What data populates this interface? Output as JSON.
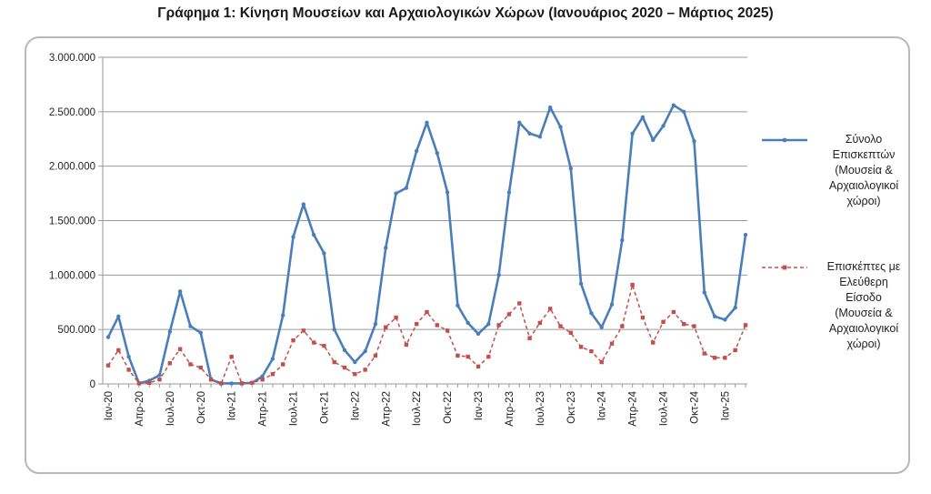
{
  "title": "Γράφημα 1: Κίνηση Μουσείων και Αρχαιολογικών Χώρων (Ιανουάριος 2020 – Μάρτιος 2025)",
  "chart_data": {
    "type": "line",
    "title": "Γράφημα 1: Κίνηση Μουσείων και Αρχαιολογικών Χώρων (Ιανουάριος 2020 – Μάρτιος 2025)",
    "xlabel": "",
    "ylabel": "",
    "ylim": [
      0,
      3000000
    ],
    "yticks": [
      "0",
      "500.000",
      "1.000.000",
      "1.500.000",
      "2.000.000",
      "2.500.000",
      "3.000.000"
    ],
    "ytick_values": [
      0,
      500000,
      1000000,
      1500000,
      2000000,
      2500000,
      3000000
    ],
    "grid": true,
    "legend_position": "right",
    "x": [
      "Ιαν-20",
      "Φεβ-20",
      "Μαρ-20",
      "Απρ-20",
      "Μαϊ-20",
      "Ιουν-20",
      "Ιουλ-20",
      "Αυγ-20",
      "Σεπ-20",
      "Οκτ-20",
      "Νοε-20",
      "Δεκ-20",
      "Ιαν-21",
      "Φεβ-21",
      "Μαρ-21",
      "Απρ-21",
      "Μαϊ-21",
      "Ιουν-21",
      "Ιουλ-21",
      "Αυγ-21",
      "Σεπ-21",
      "Οκτ-21",
      "Νοε-21",
      "Δεκ-21",
      "Ιαν-22",
      "Φεβ-22",
      "Μαρ-22",
      "Απρ-22",
      "Μαϊ-22",
      "Ιουν-22",
      "Ιουλ-22",
      "Αυγ-22",
      "Σεπ-22",
      "Οκτ-22",
      "Νοε-22",
      "Δεκ-22",
      "Ιαν-23",
      "Φεβ-23",
      "Μαρ-23",
      "Απρ-23",
      "Μαϊ-23",
      "Ιουν-23",
      "Ιουλ-23",
      "Αυγ-23",
      "Σεπ-23",
      "Οκτ-23",
      "Νοε-23",
      "Δεκ-23",
      "Ιαν-24",
      "Φεβ-24",
      "Μαρ-24",
      "Απρ-24",
      "Μαϊ-24",
      "Ιουν-24",
      "Ιουλ-24",
      "Αυγ-24",
      "Σεπ-24",
      "Οκτ-24",
      "Νοε-24",
      "Δεκ-24",
      "Ιαν-25",
      "Φεβ-25",
      "Μαρ-25"
    ],
    "xtick_labels": [
      {
        "index": 0,
        "label": "Ιαν-20"
      },
      {
        "index": 3,
        "label": "Απρ-20"
      },
      {
        "index": 6,
        "label": "Ιουλ-20"
      },
      {
        "index": 9,
        "label": "Οκτ-20"
      },
      {
        "index": 12,
        "label": "Ιαν-21"
      },
      {
        "index": 15,
        "label": "Απρ-21"
      },
      {
        "index": 18,
        "label": "Ιουλ-21"
      },
      {
        "index": 21,
        "label": "Οκτ-21"
      },
      {
        "index": 24,
        "label": "Ιαν-22"
      },
      {
        "index": 27,
        "label": "Απρ-22"
      },
      {
        "index": 30,
        "label": "Ιουλ-22"
      },
      {
        "index": 33,
        "label": "Οκτ-22"
      },
      {
        "index": 36,
        "label": "Ιαν-23"
      },
      {
        "index": 39,
        "label": "Απρ-23"
      },
      {
        "index": 42,
        "label": "Ιουλ-23"
      },
      {
        "index": 45,
        "label": "Οκτ-23"
      },
      {
        "index": 48,
        "label": "Ιαν-24"
      },
      {
        "index": 51,
        "label": "Απρ-24"
      },
      {
        "index": 54,
        "label": "Ιουλ-24"
      },
      {
        "index": 57,
        "label": "Οκτ-24"
      },
      {
        "index": 60,
        "label": "Ιαν-25"
      }
    ],
    "series": [
      {
        "name": "Σύνολο Επισκεπτών (Μουσεία & Αρχαιολογικοί χώροι)",
        "legend_lines": [
          "Σύνολο",
          "Επισκεπτών",
          "(Μουσεία &",
          "Αρχαιολογικοί",
          "χώροι)"
        ],
        "color": "#4a7ebb",
        "marker": "diamond",
        "values": [
          430000,
          620000,
          250000,
          5000,
          30000,
          80000,
          480000,
          850000,
          530000,
          470000,
          40000,
          5000,
          5000,
          5000,
          10000,
          70000,
          230000,
          630000,
          1350000,
          1650000,
          1370000,
          1200000,
          500000,
          310000,
          200000,
          300000,
          550000,
          1250000,
          1750000,
          1800000,
          2140000,
          2400000,
          2120000,
          1760000,
          720000,
          560000,
          460000,
          550000,
          1000000,
          1760000,
          2400000,
          2300000,
          2270000,
          2540000,
          2360000,
          1980000,
          920000,
          650000,
          520000,
          730000,
          1320000,
          2300000,
          2450000,
          2240000,
          2370000,
          2560000,
          2500000,
          2230000,
          840000,
          620000,
          590000,
          700000,
          1370000
        ]
      },
      {
        "name": "Επισκέπτες με Ελεύθερη Είσοδο (Μουσεία & Αρχαιολογικοί χώροι)",
        "legend_lines": [
          "Επισκέπτες με",
          "Ελεύθερη",
          "Είσοδο",
          "(Μουσεία &",
          "Αρχαιολογικοί",
          "χώροι)"
        ],
        "color": "#c0504d",
        "marker": "square",
        "dashed": true,
        "values": [
          170000,
          310000,
          130000,
          5000,
          10000,
          40000,
          190000,
          320000,
          180000,
          150000,
          40000,
          5000,
          250000,
          5000,
          10000,
          40000,
          90000,
          180000,
          400000,
          490000,
          380000,
          350000,
          200000,
          150000,
          90000,
          130000,
          260000,
          520000,
          610000,
          360000,
          550000,
          660000,
          540000,
          490000,
          260000,
          250000,
          160000,
          250000,
          540000,
          640000,
          740000,
          420000,
          560000,
          690000,
          530000,
          470000,
          340000,
          300000,
          200000,
          370000,
          530000,
          910000,
          610000,
          380000,
          570000,
          660000,
          550000,
          530000,
          280000,
          240000,
          240000,
          310000,
          540000
        ]
      }
    ]
  }
}
